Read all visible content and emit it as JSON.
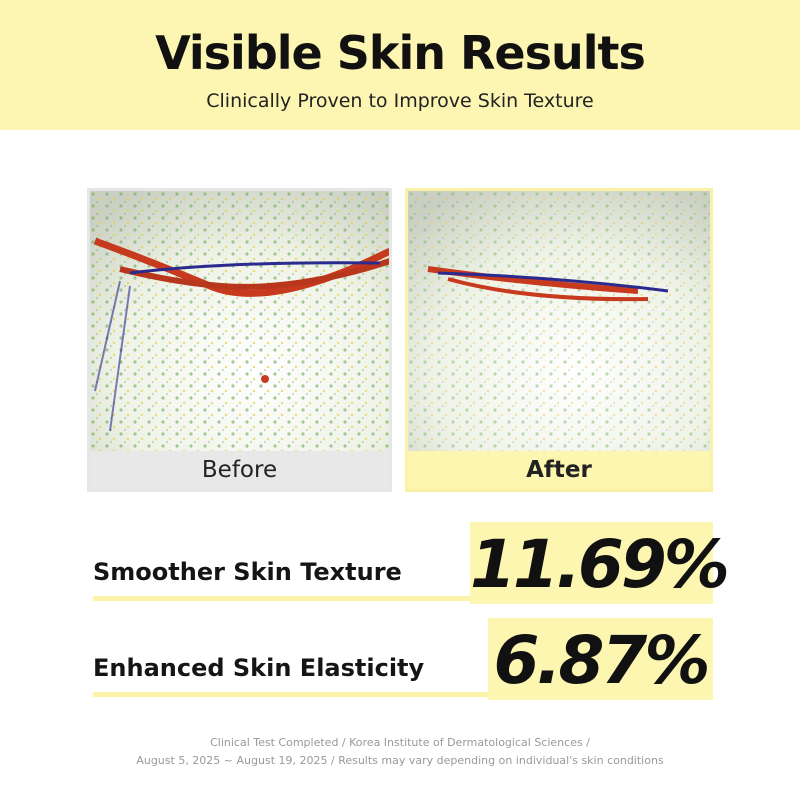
{
  "header": {
    "title": "Visible Skin Results",
    "subtitle": "Clinically Proven to Improve Skin Texture"
  },
  "comparison": {
    "before_label": "Before",
    "after_label": "After"
  },
  "stats": [
    {
      "label": "Smoother Skin Texture",
      "value": "11.69%"
    },
    {
      "label": "Enhanced Skin Elasticity",
      "value": "6.87%"
    }
  ],
  "footnote": [
    "Clinical Test Completed / Korea Institute of Dermatological Sciences /",
    "August 5, 2025 ~ August 19, 2025 / Results may vary depending on individual's skin conditions"
  ]
}
